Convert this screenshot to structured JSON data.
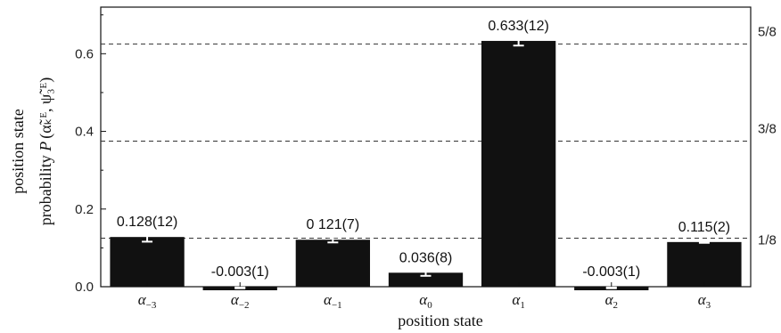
{
  "chart_data": {
    "type": "bar",
    "categories": [
      "α_{-3}",
      "α_{-2}",
      "α_{-1}",
      "α_{0}",
      "α_{1}",
      "α_{2}",
      "α_{3}"
    ],
    "category_labels": [
      {
        "base": "α",
        "sub": "−3"
      },
      {
        "base": "α",
        "sub": "−2"
      },
      {
        "base": "α",
        "sub": "−1"
      },
      {
        "base": "α",
        "sub": "0"
      },
      {
        "base": "α",
        "sub": "1"
      },
      {
        "base": "α",
        "sub": "2"
      },
      {
        "base": "α",
        "sub": "3"
      }
    ],
    "values": [
      0.128,
      -0.003,
      0.121,
      0.036,
      0.633,
      -0.003,
      0.115
    ],
    "errors": [
      0.012,
      0.001,
      0.007,
      0.008,
      0.012,
      0.001,
      0.002
    ],
    "value_labels": [
      "0.128(12)",
      "-0.003(1)",
      "0 121(7)",
      "0.036(8)",
      "0.633(12)",
      "-0.003(1)",
      "0.115(2)"
    ],
    "xlabel": "position state",
    "ylabel_line1": "position state",
    "ylabel_line2_prefix": "probability ",
    "ylabel_line2_symbol": "P",
    "ylabel_line2_args": "(α̃ₖᴱ, ψ̃₃ᴱ)",
    "ylim": [
      0,
      0.72
    ],
    "yticks": [
      0.0,
      0.2,
      0.4,
      0.6
    ],
    "ytick_labels": [
      "0.0",
      "0.2",
      "0.4",
      "0.6"
    ],
    "reference_lines": [
      {
        "value": 0.625,
        "label": "5/8"
      },
      {
        "value": 0.375,
        "label": "3/8"
      },
      {
        "value": 0.125,
        "label": "1/8"
      }
    ],
    "bar_color": "#111111",
    "error_bar_color": "#ffffff",
    "grid": false
  }
}
